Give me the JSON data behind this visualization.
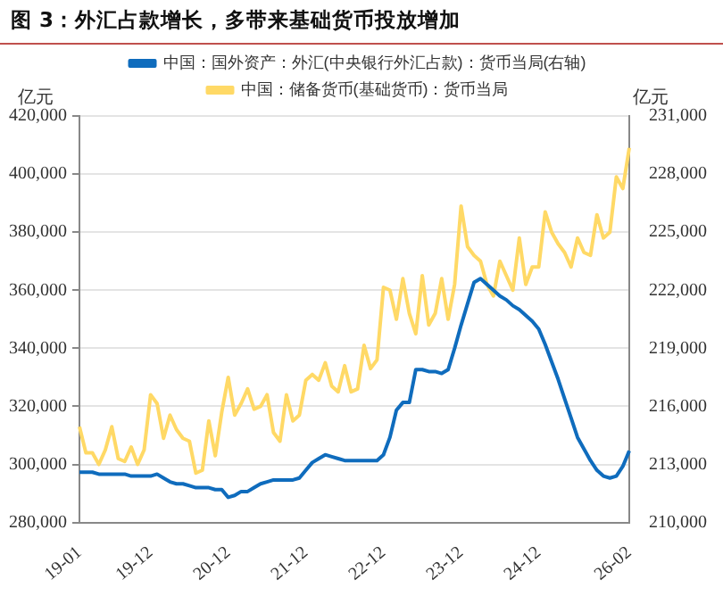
{
  "chart_data": {
    "type": "line",
    "title": "图 3：外汇占款增长，多带来基础货币投放增加",
    "ylabel": "亿元",
    "y2label": "亿元",
    "categories": [
      "19-01",
      null,
      null,
      null,
      null,
      null,
      null,
      null,
      null,
      null,
      null,
      "19-12",
      null,
      null,
      null,
      null,
      null,
      null,
      null,
      null,
      null,
      null,
      null,
      "20-12",
      null,
      null,
      null,
      null,
      null,
      null,
      null,
      null,
      null,
      null,
      null,
      "21-12",
      null,
      null,
      null,
      null,
      null,
      null,
      null,
      null,
      null,
      null,
      null,
      "22-12",
      null,
      null,
      null,
      null,
      null,
      null,
      null,
      null,
      null,
      null,
      null,
      "23-12",
      null,
      null,
      null,
      null,
      null,
      null,
      null,
      null,
      null,
      null,
      null,
      "24-12",
      null,
      null,
      null,
      null,
      null,
      null,
      null,
      null,
      null,
      null,
      null,
      null,
      null,
      "26-02"
    ],
    "series": [
      {
        "name": "中国：国外资产：外汇(中央银行外汇占款)：货币当局(右轴)",
        "color": "#0f6cbd",
        "axis": "y2",
        "values": [
          212600,
          212600,
          212600,
          212500,
          212500,
          212500,
          212500,
          212500,
          212400,
          212400,
          212400,
          212400,
          212500,
          212300,
          212100,
          212000,
          212000,
          211900,
          211800,
          211800,
          211800,
          211700,
          211700,
          211300,
          211400,
          211600,
          211600,
          211800,
          212000,
          212100,
          212200,
          212200,
          212200,
          212200,
          212300,
          212700,
          213100,
          213300,
          213500,
          213400,
          213300,
          213200,
          213200,
          213200,
          213200,
          213200,
          213200,
          213500,
          214400,
          215800,
          216200,
          216200,
          217900,
          217900,
          217800,
          217800,
          217700,
          217900,
          219000,
          220200,
          221300,
          222400,
          222600,
          222300,
          222000,
          221700,
          221500,
          221200,
          221000,
          220700,
          220400,
          220000,
          219200,
          218300,
          217400,
          216400,
          215400,
          214400,
          213800,
          213200,
          212700,
          212400,
          212300,
          212400,
          212900,
          213700
        ]
      },
      {
        "name": "中国：储备货币(基础货币)：货币当局",
        "color": "#ffd966",
        "values": [
          313000,
          304000,
          304000,
          300000,
          305000,
          313000,
          302000,
          301000,
          306000,
          300000,
          305000,
          324000,
          321000,
          309000,
          317000,
          312000,
          309000,
          308000,
          297000,
          298000,
          315000,
          303000,
          318000,
          330000,
          317000,
          321000,
          326000,
          319000,
          320000,
          324000,
          311000,
          308000,
          324000,
          315000,
          317000,
          329000,
          331000,
          329000,
          335000,
          327000,
          325000,
          334000,
          325000,
          326000,
          341000,
          333000,
          336000,
          361000,
          360000,
          350000,
          364000,
          352000,
          345000,
          365000,
          348000,
          352000,
          364000,
          350000,
          362000,
          389000,
          375000,
          372000,
          370000,
          362000,
          358000,
          370000,
          365000,
          360000,
          378000,
          362000,
          368000,
          368000,
          387000,
          380000,
          376000,
          373000,
          368000,
          378000,
          373000,
          372000,
          386000,
          378000,
          380000,
          399000,
          395000,
          409000
        ]
      }
    ],
    "ylim": [
      280000,
      420000
    ],
    "yticks": [
      {
        "value": 280000,
        "label": "280,000"
      },
      {
        "value": 300000,
        "label": "300,000"
      },
      {
        "value": 320000,
        "label": "320,000"
      },
      {
        "value": 340000,
        "label": "340,000"
      },
      {
        "value": 360000,
        "label": "360,000"
      },
      {
        "value": 380000,
        "label": "380,000"
      },
      {
        "value": 400000,
        "label": "400,000"
      },
      {
        "value": 420000,
        "label": "420,000"
      }
    ],
    "y2lim": [
      210000,
      231000
    ],
    "y2ticks": [
      {
        "value": 210000,
        "label": "210,000"
      },
      {
        "value": 213000,
        "label": "213,000"
      },
      {
        "value": 216000,
        "label": "216,000"
      },
      {
        "value": 219000,
        "label": "219,000"
      },
      {
        "value": 222000,
        "label": "222,000"
      },
      {
        "value": 225000,
        "label": "225,000"
      },
      {
        "value": 228000,
        "label": "228,000"
      },
      {
        "value": 231000,
        "label": "231,000"
      }
    ],
    "grid": "y",
    "legend": "top",
    "marker": "none",
    "line_style": "solid"
  }
}
